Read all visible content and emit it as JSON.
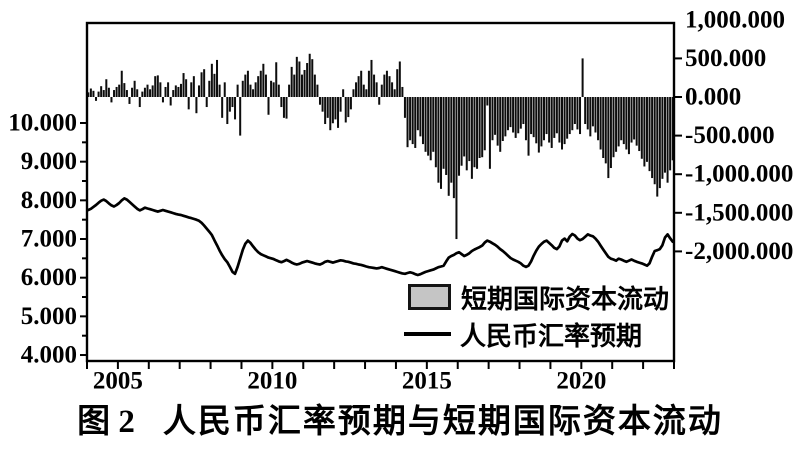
{
  "figure": {
    "caption_prefix": "图 2",
    "caption_title": "人民币汇率预期与短期国际资本流动"
  },
  "legend": {
    "bar_label": "短期国际资本流动",
    "line_label": "人民币汇率预期",
    "bar_swatch_color": "#c5c5c5",
    "line_swatch_color": "#000000"
  },
  "chart_data": {
    "type": "combo-bar-line",
    "x_start": "2004-01",
    "x_freq": "monthly",
    "x_range_years": [
      2004,
      2023
    ],
    "grid": "off",
    "legend_position": "inside-bottom-center",
    "x_axis": {
      "tick_labels": [
        "2005",
        "2010",
        "2015",
        "2020"
      ],
      "tick_years": [
        2005,
        2010,
        2015,
        2020
      ],
      "minor_tick_step_years": 1
    },
    "left_axis": {
      "tick_labels": [
        "10.000",
        "9.000",
        "8.000",
        "7.000",
        "6.000",
        "5.000",
        "4.000"
      ],
      "tick_values": [
        10,
        9,
        8,
        7,
        6,
        5,
        4
      ],
      "range_labeled": [
        4,
        10
      ]
    },
    "right_axis": {
      "tick_labels": [
        "1,000.000",
        "500.000",
        "0.000",
        "-500.000",
        "-1,000.000",
        "-1,500.000",
        "-2,000.000"
      ],
      "tick_values": [
        1000,
        500,
        0,
        -500,
        -1000,
        -1500,
        -2000
      ],
      "range_labeled": [
        -2000,
        1000
      ]
    },
    "series": [
      {
        "name": "短期国际资本流动",
        "type": "bar",
        "axis": "right",
        "color": "#0d0d0d",
        "values": [
          60,
          110,
          80,
          -50,
          70,
          140,
          90,
          230,
          120,
          -70,
          90,
          130,
          160,
          340,
          180,
          90,
          -90,
          120,
          210,
          100,
          -130,
          70,
          120,
          160,
          100,
          150,
          270,
          280,
          190,
          -70,
          130,
          190,
          -110,
          90,
          150,
          130,
          170,
          310,
          230,
          -160,
          190,
          270,
          -210,
          150,
          320,
          360,
          -130,
          210,
          430,
          300,
          480,
          160,
          -270,
          190,
          -350,
          -190,
          -130,
          -290,
          160,
          -500,
          210,
          290,
          340,
          160,
          100,
          190,
          270,
          340,
          430,
          290,
          -230,
          210,
          190,
          450,
          160,
          -130,
          -270,
          -280,
          160,
          390,
          290,
          520,
          460,
          290,
          350,
          440,
          560,
          490,
          290,
          160,
          -100,
          -190,
          -350,
          -270,
          -430,
          -340,
          -290,
          -400,
          -190,
          100,
          -330,
          -260,
          -160,
          100,
          190,
          270,
          340,
          160,
          100,
          340,
          480,
          290,
          190,
          -100,
          160,
          290,
          340,
          270,
          190,
          100,
          360,
          460,
          130,
          -270,
          -650,
          -560,
          -610,
          -660,
          -430,
          -510,
          -610,
          -710,
          -760,
          -820,
          -710,
          -910,
          -1110,
          -1190,
          -930,
          -1010,
          -1280,
          -1110,
          -1310,
          -1840,
          -1020,
          -890,
          -770,
          -950,
          -830,
          -1060,
          -910,
          -930,
          -790,
          -780,
          -690,
          -110,
          -930,
          -560,
          -490,
          -630,
          -710,
          -570,
          -510,
          -430,
          -390,
          -460,
          -530,
          -470,
          -410,
          -350,
          -560,
          -760,
          -480,
          -520,
          -600,
          -720,
          -640,
          -560,
          -480,
          -590,
          -660,
          -530,
          -470,
          -590,
          -680,
          -610,
          -540,
          -480,
          -430,
          -350,
          -420,
          -480,
          500,
          -350,
          -420,
          -510,
          -380,
          -460,
          -560,
          -680,
          -790,
          -860,
          -1050,
          -920,
          -780,
          -710,
          -640,
          -560,
          -610,
          -680,
          -740,
          -590,
          -550,
          -630,
          -700,
          -800,
          -900,
          -840,
          -960,
          -1050,
          -1130,
          -1290,
          -1180,
          -1060,
          -980,
          -1110,
          -950,
          -820
        ]
      },
      {
        "name": "人民币汇率预期",
        "type": "line",
        "axis": "left",
        "color": "#000000",
        "values": [
          7.75,
          7.78,
          7.83,
          7.88,
          7.94,
          7.99,
          8.02,
          7.98,
          7.92,
          7.87,
          7.84,
          7.88,
          7.93,
          8.0,
          8.05,
          8.02,
          7.96,
          7.9,
          7.84,
          7.78,
          7.74,
          7.77,
          7.81,
          7.79,
          7.77,
          7.75,
          7.73,
          7.71,
          7.73,
          7.75,
          7.73,
          7.71,
          7.69,
          7.67,
          7.65,
          7.63,
          7.62,
          7.6,
          7.58,
          7.56,
          7.54,
          7.52,
          7.5,
          7.47,
          7.42,
          7.35,
          7.27,
          7.19,
          7.1,
          6.97,
          6.84,
          6.7,
          6.58,
          6.48,
          6.4,
          6.28,
          6.15,
          6.1,
          6.28,
          6.5,
          6.72,
          6.88,
          6.96,
          6.9,
          6.81,
          6.73,
          6.66,
          6.61,
          6.58,
          6.55,
          6.52,
          6.5,
          6.48,
          6.45,
          6.42,
          6.4,
          6.43,
          6.46,
          6.43,
          6.39,
          6.36,
          6.34,
          6.36,
          6.39,
          6.41,
          6.43,
          6.41,
          6.39,
          6.37,
          6.35,
          6.34,
          6.37,
          6.41,
          6.43,
          6.41,
          6.39,
          6.41,
          6.43,
          6.45,
          6.44,
          6.42,
          6.41,
          6.39,
          6.37,
          6.36,
          6.34,
          6.33,
          6.31,
          6.29,
          6.27,
          6.26,
          6.25,
          6.24,
          6.25,
          6.27,
          6.25,
          6.23,
          6.21,
          6.19,
          6.17,
          6.15,
          6.13,
          6.11,
          6.1,
          6.12,
          6.14,
          6.12,
          6.09,
          6.07,
          6.09,
          6.12,
          6.15,
          6.17,
          6.19,
          6.21,
          6.24,
          6.27,
          6.29,
          6.31,
          6.42,
          6.52,
          6.56,
          6.59,
          6.63,
          6.66,
          6.61,
          6.56,
          6.59,
          6.63,
          6.69,
          6.73,
          6.76,
          6.79,
          6.83,
          6.91,
          6.96,
          6.93,
          6.89,
          6.85,
          6.8,
          6.74,
          6.69,
          6.63,
          6.57,
          6.51,
          6.47,
          6.44,
          6.41,
          6.37,
          6.31,
          6.28,
          6.31,
          6.42,
          6.57,
          6.7,
          6.8,
          6.87,
          6.93,
          6.96,
          6.9,
          6.84,
          6.77,
          6.74,
          6.81,
          6.96,
          7.01,
          6.94,
          7.06,
          7.13,
          7.09,
          7.01,
          6.97,
          7.0,
          7.06,
          7.12,
          7.09,
          7.07,
          7.01,
          6.93,
          6.83,
          6.73,
          6.63,
          6.54,
          6.49,
          6.47,
          6.44,
          6.49,
          6.47,
          6.44,
          6.41,
          6.44,
          6.47,
          6.44,
          6.41,
          6.39,
          6.37,
          6.34,
          6.31,
          6.37,
          6.54,
          6.69,
          6.71,
          6.74,
          6.84,
          7.04,
          7.12,
          7.02,
          6.93
        ]
      }
    ]
  }
}
